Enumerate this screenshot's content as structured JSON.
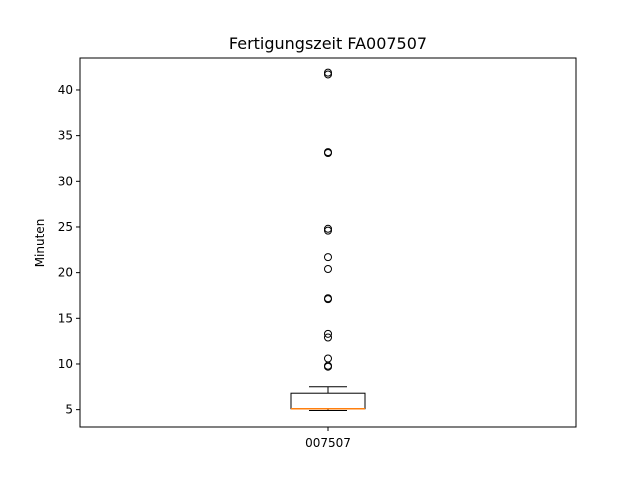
{
  "chart_data": {
    "type": "boxplot",
    "title": "Fertigungszeit FA007507",
    "xlabel": "",
    "ylabel": "Minuten",
    "ylim": [
      3.1,
      43.5
    ],
    "yticks": [
      5,
      10,
      15,
      20,
      25,
      30,
      35,
      40
    ],
    "grid": false,
    "categories": [
      "007507"
    ],
    "boxes": [
      {
        "label": "007507",
        "whisker_low": 4.9,
        "q1": 5.1,
        "median": 5.1,
        "q3": 6.8,
        "whisker_high": 7.5,
        "outliers": [
          9.7,
          9.8,
          10.6,
          12.9,
          13.3,
          17.1,
          17.2,
          20.4,
          21.7,
          24.6,
          24.8,
          33.1,
          33.2,
          41.7,
          41.9
        ]
      }
    ],
    "colors": {
      "median": "#ff7f0e",
      "box": "#000000"
    }
  }
}
